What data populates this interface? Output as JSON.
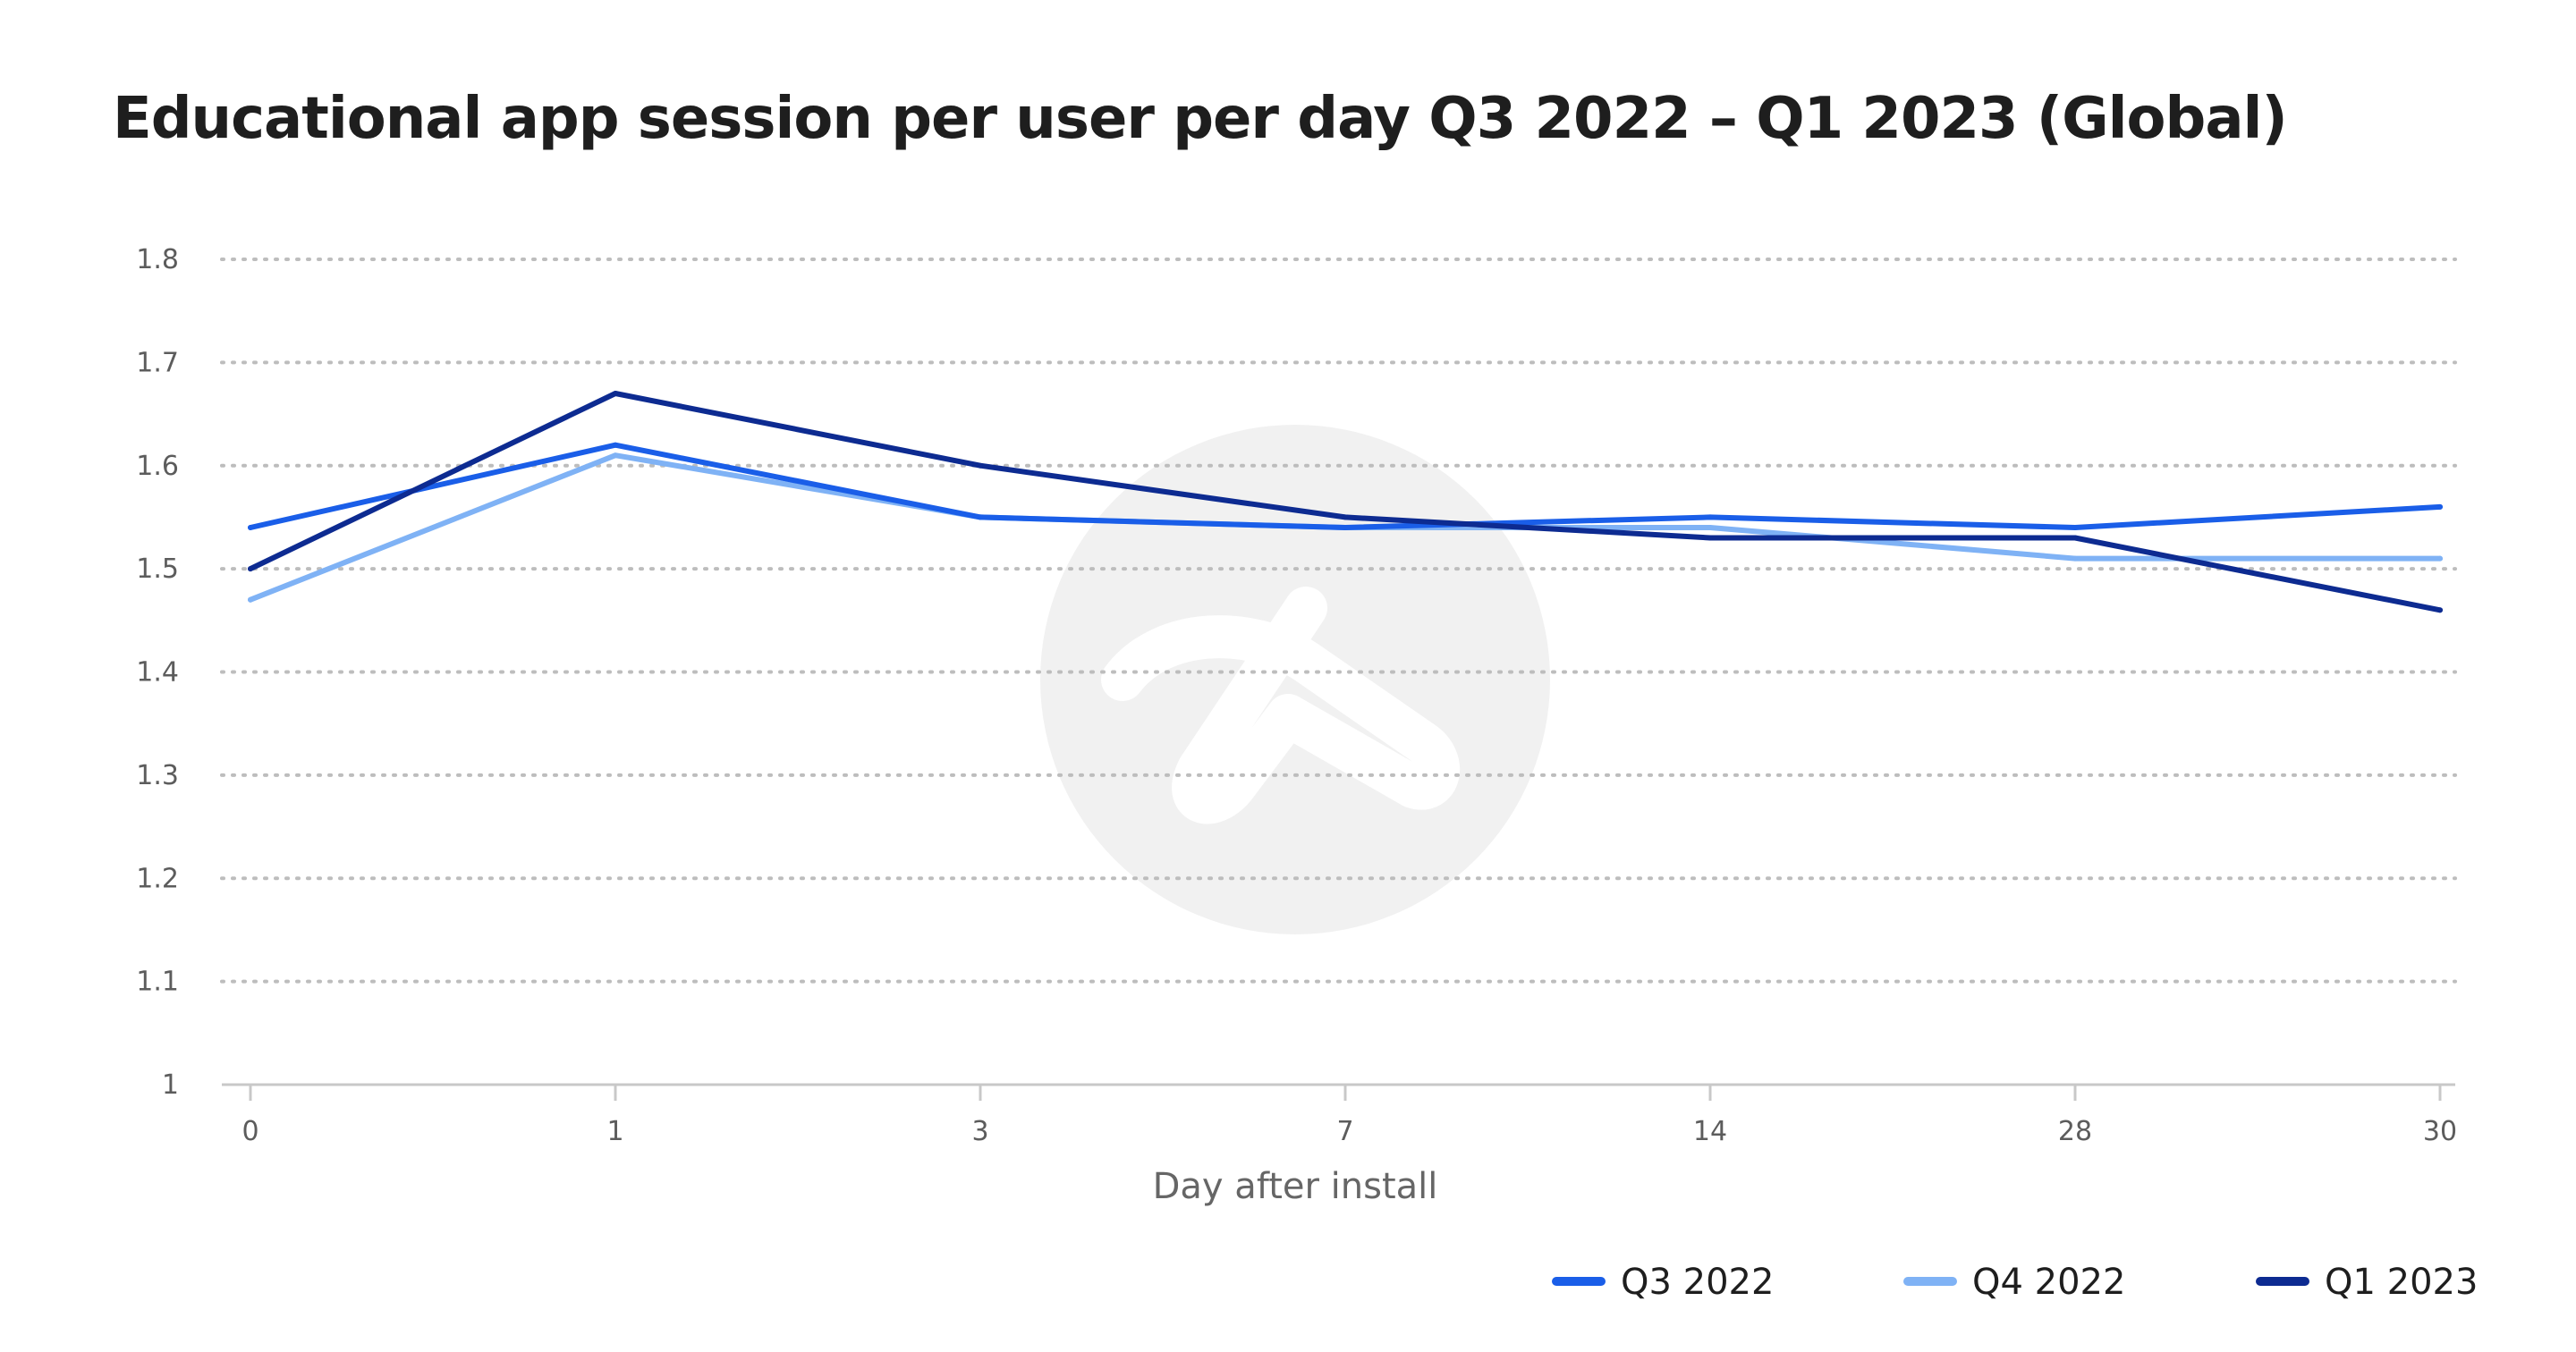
{
  "chart_data": {
    "type": "line",
    "title": "Educational app session per user per day Q3 2022 – Q1 2023 (Global)",
    "xlabel": "Day after install",
    "ylabel": "",
    "categories": [
      "0",
      "1",
      "3",
      "7",
      "14",
      "28",
      "30"
    ],
    "yticks": [
      "1",
      "1.1",
      "1.2",
      "1.3",
      "1.4",
      "1.5",
      "1.6",
      "1.7",
      "1.8"
    ],
    "ylim": [
      1,
      1.8
    ],
    "grid": true,
    "legend_position": "bottom-right",
    "series": [
      {
        "name": "Q3 2022",
        "color": "#1a5ee8",
        "values": [
          1.54,
          1.62,
          1.55,
          1.54,
          1.55,
          1.54,
          1.56
        ]
      },
      {
        "name": "Q4 2022",
        "color": "#7fb2f5",
        "values": [
          1.47,
          1.61,
          1.55,
          1.54,
          1.54,
          1.51,
          1.51
        ]
      },
      {
        "name": "Q1 2023",
        "color": "#0d2b91",
        "values": [
          1.5,
          1.67,
          1.6,
          1.55,
          1.53,
          1.53,
          1.46
        ]
      }
    ]
  }
}
